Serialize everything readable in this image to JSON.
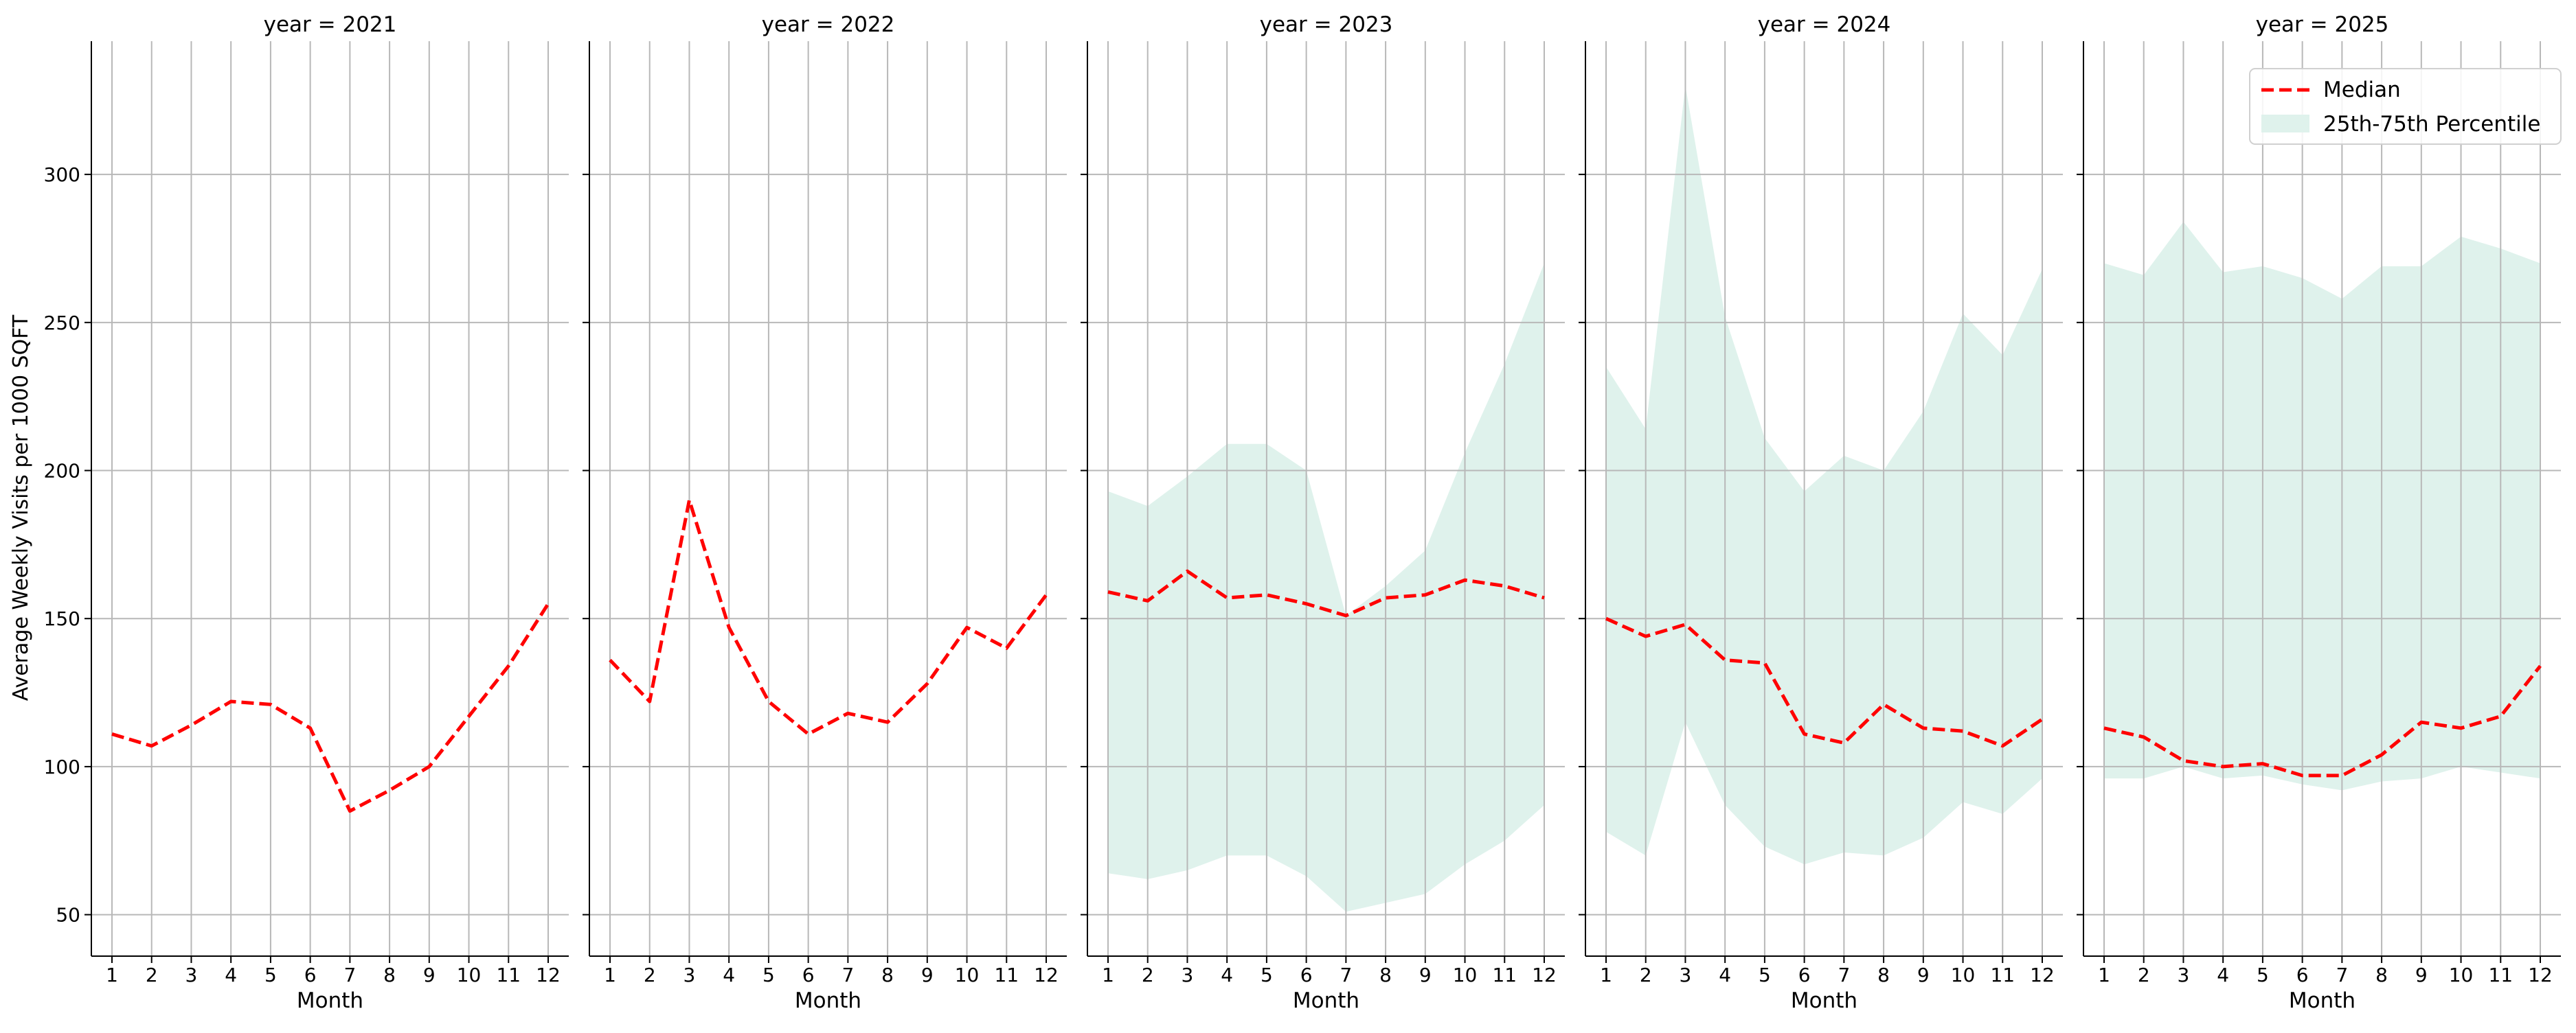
{
  "chart_data": {
    "type": "line",
    "ylabel": "Average Weekly Visits per 1000 SQFT",
    "xlabel": "Month",
    "x": [
      1,
      2,
      3,
      4,
      5,
      6,
      7,
      8,
      9,
      10,
      11,
      12
    ],
    "xticks": [
      "1",
      "2",
      "3",
      "4",
      "5",
      "6",
      "7",
      "8",
      "9",
      "10",
      "11",
      "12"
    ],
    "ylim": [
      36,
      345
    ],
    "yticks": [
      50,
      100,
      150,
      200,
      250,
      300
    ],
    "grid": true,
    "legend": {
      "placement": "top-right of last panel",
      "entries": [
        {
          "label": "Median",
          "style": "dashed-line",
          "color": "#ff0000"
        },
        {
          "label": "25th-75th Percentile",
          "style": "band",
          "color": "#dff2ec"
        }
      ]
    },
    "colors": {
      "median": "#ff0000",
      "band": "#dff2ec",
      "grid": "#b8b8b8"
    },
    "panels": [
      {
        "title": "year = 2021",
        "median": [
          111,
          107,
          114,
          122,
          121,
          113,
          85,
          92,
          100,
          117,
          134,
          155
        ],
        "p25": null,
        "p75": null
      },
      {
        "title": "year = 2022",
        "median": [
          136,
          122,
          190,
          147,
          122,
          111,
          118,
          115,
          128,
          147,
          140,
          158
        ],
        "p25": null,
        "p75": null
      },
      {
        "title": "year = 2023",
        "median": [
          159,
          156,
          166,
          157,
          158,
          155,
          151,
          157,
          158,
          163,
          161,
          157
        ],
        "p25": [
          64,
          62,
          65,
          70,
          70,
          63,
          51,
          54,
          57,
          67,
          75,
          87
        ],
        "p75": [
          193,
          188,
          198,
          209,
          209,
          200,
          151,
          161,
          173,
          206,
          236,
          270
        ]
      },
      {
        "title": "year = 2024",
        "median": [
          150,
          144,
          148,
          136,
          135,
          111,
          108,
          121,
          113,
          112,
          107,
          116
        ],
        "p25": [
          78,
          70,
          115,
          87,
          73,
          67,
          71,
          70,
          76,
          88,
          84,
          96
        ],
        "p75": [
          235,
          214,
          330,
          252,
          211,
          193,
          205,
          200,
          220,
          253,
          239,
          268
        ]
      },
      {
        "title": "year = 2025",
        "median": [
          113,
          110,
          102,
          100,
          101,
          97,
          97,
          104,
          115,
          113,
          117,
          134
        ],
        "p25": [
          96,
          96,
          100,
          96,
          97,
          94,
          92,
          95,
          96,
          100,
          98,
          96
        ],
        "p75": [
          270,
          266,
          284,
          267,
          269,
          265,
          258,
          269,
          269,
          279,
          275,
          270
        ]
      }
    ]
  }
}
